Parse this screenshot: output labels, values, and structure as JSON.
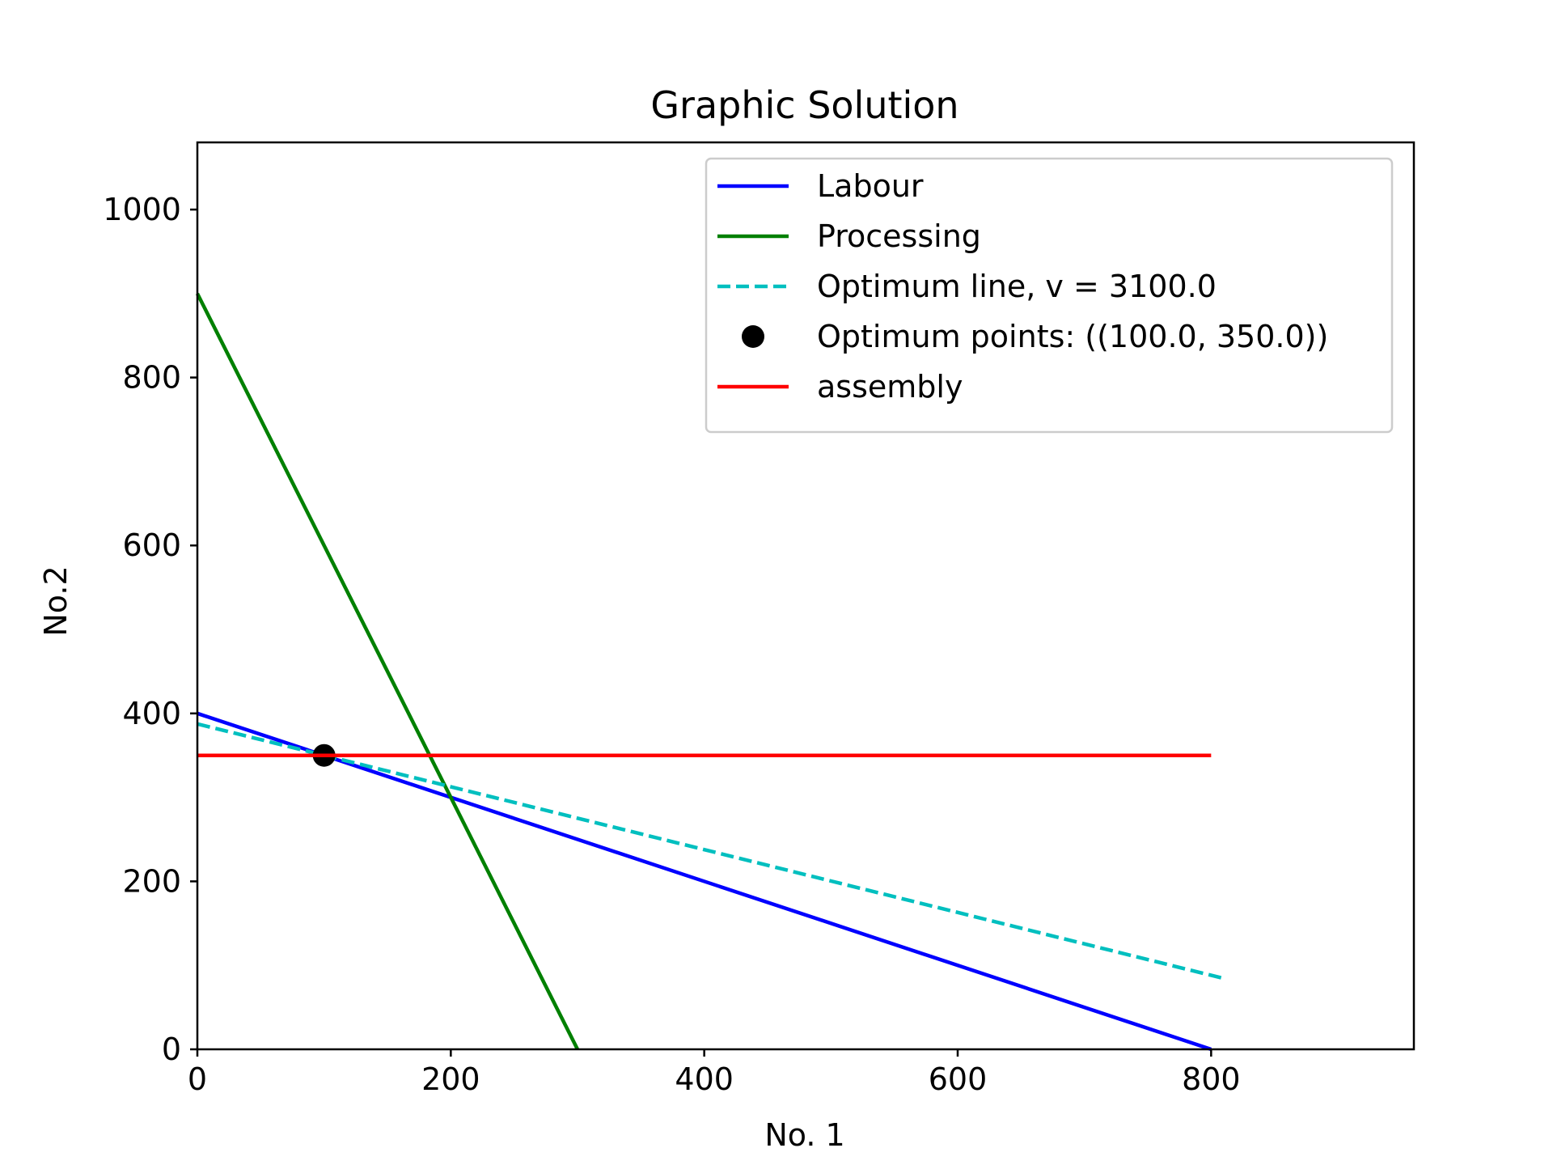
{
  "chart_data": {
    "type": "line",
    "title": "Graphic Solution",
    "xlabel": "No. 1",
    "ylabel": "No.2",
    "xlim": [
      0,
      960
    ],
    "ylim": [
      0,
      1080
    ],
    "xticks": [
      0,
      200,
      400,
      600,
      800
    ],
    "yticks": [
      0,
      200,
      400,
      600,
      800,
      1000
    ],
    "xtick_labels": [
      "0",
      "200",
      "400",
      "600",
      "800"
    ],
    "ytick_labels": [
      "0",
      "200",
      "400",
      "600",
      "800",
      "1000"
    ],
    "grid": false,
    "legend_position": "top-right",
    "series": [
      {
        "name": "Labour",
        "style": "solid",
        "color": "#0000ff",
        "x": [
          0,
          800
        ],
        "y": [
          400,
          0
        ]
      },
      {
        "name": "Processing",
        "style": "solid",
        "color": "#008000",
        "x": [
          0,
          300
        ],
        "y": [
          900,
          0
        ]
      },
      {
        "name": "Optimum line, v = 3100.0",
        "style": "dashed",
        "color": "#00bfbf",
        "x": [
          0,
          810
        ],
        "y": [
          387.5,
          84.4
        ]
      },
      {
        "name": "Optimum points: ((100.0, 350.0))",
        "style": "point",
        "color": "#000000",
        "x": [
          100
        ],
        "y": [
          350
        ]
      },
      {
        "name": "assembly",
        "style": "solid",
        "color": "#ff0000",
        "x": [
          0,
          800
        ],
        "y": [
          350,
          350
        ]
      }
    ]
  }
}
